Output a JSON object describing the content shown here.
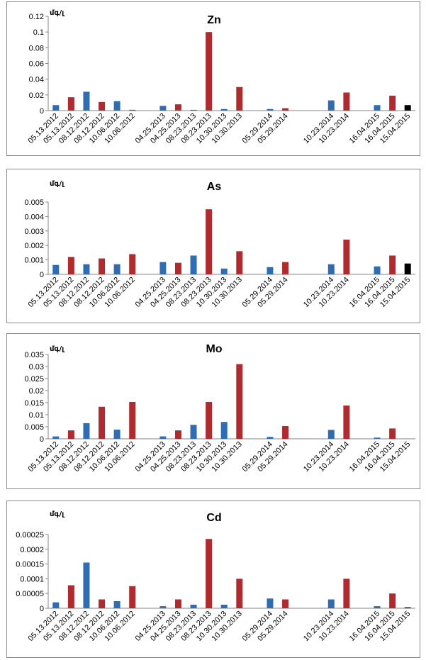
{
  "chart_data": [
    {
      "type": "bar",
      "title": "Zn",
      "unit_label": "մգ/լ",
      "ylim": [
        0,
        0.12
      ],
      "yticks": [
        "0",
        "0.02",
        "0.04",
        "0.06",
        "0.08",
        "0.1",
        "0.12"
      ],
      "categories": [
        "05.13.2012",
        "05.13.2012",
        "08.12.2012",
        "08.12.2012",
        "10.06.2012",
        "10.06.2012",
        "",
        "04.25.2013",
        "04.25.2013",
        "08.23.2013",
        "08.23.2013",
        "10.30.2013",
        "10.30.2013",
        "",
        "05.29.2014",
        "05.29.2014",
        "",
        "",
        "10.23.2014",
        "10.23.2014",
        "",
        "16.04.2015",
        "16.04.2015",
        "15.04.2015"
      ],
      "values": [
        0.007,
        0.017,
        0.024,
        0.011,
        0.012,
        0.001,
        null,
        0.006,
        0.008,
        0.001,
        0.1,
        0.002,
        0.03,
        null,
        0.002,
        0.003,
        null,
        null,
        0.013,
        0.023,
        null,
        0.007,
        0.019,
        0.007
      ],
      "colors": [
        "#2e6db4",
        "#b22a2e",
        "#2e6db4",
        "#b22a2e",
        "#2e6db4",
        "#b22a2e",
        "",
        "#2e6db4",
        "#b22a2e",
        "#2e6db4",
        "#b22a2e",
        "#2e6db4",
        "#b22a2e",
        "",
        "#2e6db4",
        "#b22a2e",
        "",
        "",
        "#2e6db4",
        "#b22a2e",
        "",
        "#2e6db4",
        "#b22a2e",
        "#000000"
      ]
    },
    {
      "type": "bar",
      "title": "As",
      "unit_label": "մգ/լ",
      "ylim": [
        0,
        0.005
      ],
      "yticks": [
        "0",
        "0.001",
        "0.002",
        "0.003",
        "0.004",
        "0.005"
      ],
      "categories": [
        "05.13.2012",
        "05.13.2012",
        "08.12.2012",
        "08.12.2012",
        "10.06.2012",
        "10.06.2012",
        "",
        "04.25.2013",
        "04.25.2013",
        "08.23.2013",
        "08.23.2013",
        "10.30.2013",
        "10.30.2013",
        "",
        "05.29.2014",
        "05.29.2014",
        "",
        "",
        "10.23.2014",
        "10.23.2014",
        "",
        "16.04.2015",
        "16.04.2015",
        "15.04.2015"
      ],
      "values": [
        0.00065,
        0.0012,
        0.0007,
        0.0011,
        0.0007,
        0.0014,
        null,
        0.00085,
        0.0008,
        0.0013,
        0.0045,
        0.0004,
        0.0016,
        null,
        0.0005,
        0.00085,
        null,
        null,
        0.0007,
        0.0024,
        null,
        0.00055,
        0.0013,
        0.00075
      ],
      "colors": [
        "#2e6db4",
        "#b22a2e",
        "#2e6db4",
        "#b22a2e",
        "#2e6db4",
        "#b22a2e",
        "",
        "#2e6db4",
        "#b22a2e",
        "#2e6db4",
        "#b22a2e",
        "#2e6db4",
        "#b22a2e",
        "",
        "#2e6db4",
        "#b22a2e",
        "",
        "",
        "#2e6db4",
        "#b22a2e",
        "",
        "#2e6db4",
        "#b22a2e",
        "#000000"
      ]
    },
    {
      "type": "bar",
      "title": "Mo",
      "unit_label": "մգ/լ",
      "ylim": [
        0,
        0.035
      ],
      "yticks": [
        "0",
        "0.005",
        "0.01",
        "0.015",
        "0.02",
        "0.025",
        "0.03",
        "0.035"
      ],
      "categories": [
        "05.13.2012",
        "05.13.2012",
        "08.12.2012",
        "08.12.2012",
        "10.06.2012",
        "10.06.2012",
        "",
        "04.25.2013",
        "04.25.2013",
        "08.23.2013",
        "08.23.2013",
        "10.30.2013",
        "10.30.2013",
        "",
        "05.29.2014",
        "05.29.2014",
        "",
        "",
        "10.23.2014",
        "10.23.2014",
        "",
        "16.04.2015",
        "16.04.2015",
        "15.04.2015"
      ],
      "values": [
        0.001,
        0.0035,
        0.0065,
        0.0133,
        0.0038,
        0.0153,
        null,
        0.001,
        0.0035,
        0.0058,
        0.0153,
        0.007,
        0.031,
        null,
        0.0008,
        0.0053,
        null,
        null,
        0.0037,
        0.0138,
        null,
        0.0005,
        0.0043,
        0
      ],
      "colors": [
        "#2e6db4",
        "#b22a2e",
        "#2e6db4",
        "#b22a2e",
        "#2e6db4",
        "#b22a2e",
        "",
        "#2e6db4",
        "#b22a2e",
        "#2e6db4",
        "#b22a2e",
        "#2e6db4",
        "#b22a2e",
        "",
        "#2e6db4",
        "#b22a2e",
        "",
        "",
        "#2e6db4",
        "#b22a2e",
        "",
        "#2e6db4",
        "#b22a2e",
        "#000000"
      ]
    },
    {
      "type": "bar",
      "title": "Cd",
      "unit_label": "մգ/լ",
      "ylim": [
        0,
        0.00025
      ],
      "yticks": [
        "0",
        "0.00005",
        "0.0001",
        "0.00015",
        "0.0002",
        "0.00025"
      ],
      "categories": [
        "05.13.2012",
        "05.13.2012",
        "08.12.2012",
        "08.12.2012",
        "10.06.2012",
        "10.06.2012",
        "",
        "04.25.2013",
        "04.25.2013",
        "08.23.2013",
        "08.23.2013",
        "10.30.2013",
        "10.30.2013",
        "",
        "05.29.2014",
        "05.29.2014",
        "",
        "",
        "10.23.2014",
        "10.23.2014",
        "",
        "16.04.2015",
        "16.04.2015",
        "15.04.2015"
      ],
      "values": [
        2e-05,
        7.8e-05,
        0.000155,
        3e-05,
        2.4e-05,
        7.5e-05,
        null,
        7e-06,
        3e-05,
        1.2e-05,
        0.000235,
        1.2e-05,
        0.0001,
        null,
        3.3e-05,
        3e-05,
        null,
        null,
        3e-05,
        0.0001,
        null,
        7e-06,
        5e-05,
        3e-06
      ],
      "colors": [
        "#2e6db4",
        "#b22a2e",
        "#2e6db4",
        "#b22a2e",
        "#2e6db4",
        "#b22a2e",
        "",
        "#2e6db4",
        "#b22a2e",
        "#2e6db4",
        "#b22a2e",
        "#2e6db4",
        "#b22a2e",
        "",
        "#2e6db4",
        "#b22a2e",
        "",
        "",
        "#2e6db4",
        "#b22a2e",
        "",
        "#2e6db4",
        "#b22a2e",
        "#000000"
      ]
    }
  ]
}
